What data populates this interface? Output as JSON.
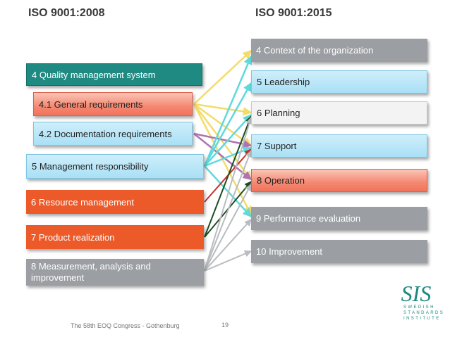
{
  "headers": {
    "left": "ISO 9001:2008",
    "right": "ISO 9001:2015"
  },
  "left_items": [
    "4 Quality management system",
    "4.1 General requirements",
    "4.2 Documentation requirements",
    "5 Management responsibility",
    "6 Resource management",
    "7 Product realization",
    "8 Measurement, analysis and improvement"
  ],
  "right_items": [
    "4 Context of the organization",
    "5 Leadership",
    "6 Planning",
    "7 Support",
    "8 Operation",
    "9 Performance evaluation",
    "10 Improvement"
  ],
  "colors": {
    "teal": "#1e8a82",
    "salmon": "#f48872",
    "light_blue": "#a9e0f6",
    "orange": "#ec5a2a",
    "gray": "#9b9ea2",
    "light": "#f3f3f3",
    "arrow_yellow": "#f3dc6a",
    "arrow_cyan": "#5fd9dc",
    "arrow_purple": "#b072b3",
    "arrow_red": "#c8302a",
    "arrow_dark_green": "#1f4d22",
    "arrow_gray": "#b9bcc0"
  },
  "footer": {
    "text": "The 58th EOQ Congress - Gothenburg",
    "page": "19"
  },
  "logo": {
    "line1": "SWEDISH",
    "line2": "STANDARDS",
    "line3": "INSTITUTE"
  }
}
